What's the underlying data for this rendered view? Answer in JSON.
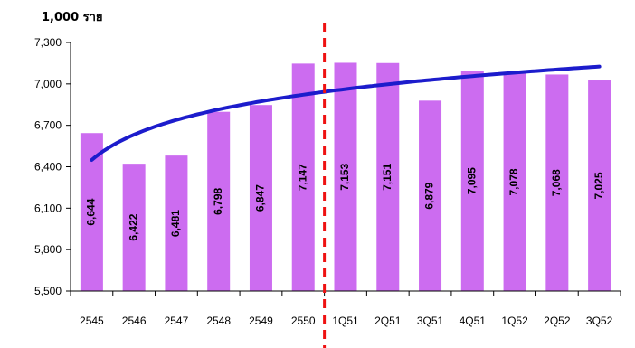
{
  "chart_data": {
    "type": "bar",
    "unit_label": "1,000 ราย",
    "categories": [
      "2545",
      "2546",
      "2547",
      "2548",
      "2549",
      "2550",
      "1Q51",
      "2Q51",
      "3Q51",
      "4Q51",
      "1Q52",
      "2Q52",
      "3Q52"
    ],
    "values": [
      6644,
      6422,
      6481,
      6798,
      6847,
      7147,
      7153,
      7151,
      6879,
      7095,
      7078,
      7068,
      7025
    ],
    "value_labels": [
      "6,644",
      "6,422",
      "6,481",
      "6,798",
      "6,847",
      "7,147",
      "7,153",
      "7,151",
      "6,879",
      "7,095",
      "7,078",
      "7,068",
      "7,025"
    ],
    "yticks": [
      5500,
      5800,
      6100,
      6400,
      6700,
      7000,
      7300
    ],
    "ytick_labels": [
      "5,500",
      "5,800",
      "6,100",
      "6,400",
      "6,700",
      "7,000",
      "7,300"
    ],
    "ylim": [
      5500,
      7300
    ],
    "trendline": {
      "type": "logarithmic",
      "color": "#1c1ccc"
    },
    "divider_after_category": "2550",
    "colors": {
      "bar": "#cc6cf0",
      "trend": "#1c1ccc",
      "divider": "#ee1111"
    },
    "grid": false,
    "legend": "none"
  }
}
